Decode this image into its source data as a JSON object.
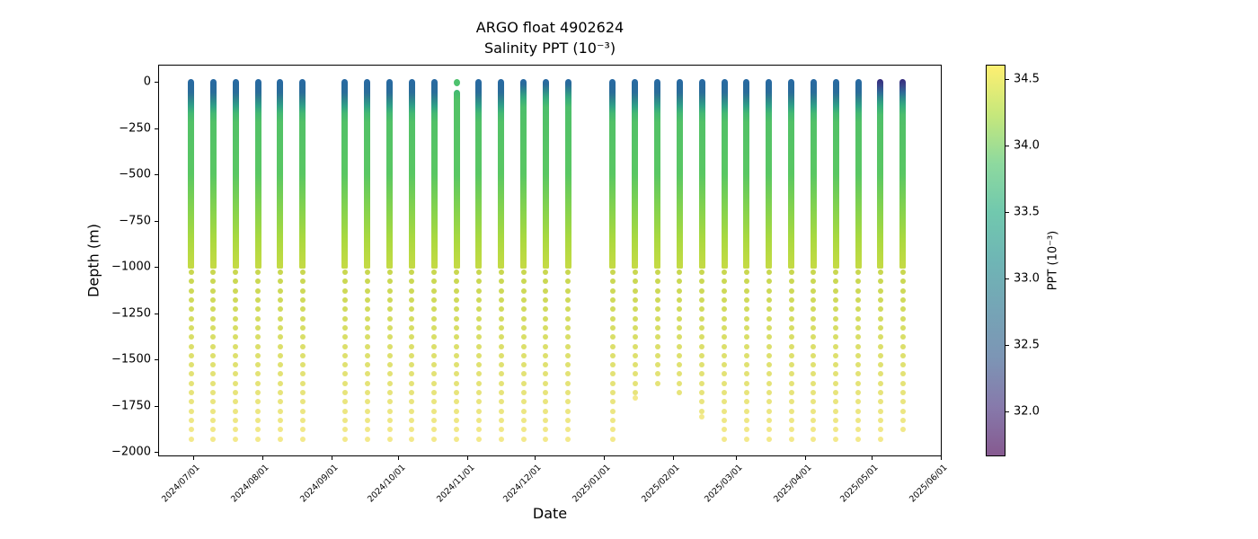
{
  "title": "ARGO float 4902624",
  "subtitle": "Salinity PPT (10⁻³)",
  "xlabel": "Date",
  "ylabel": "Depth (m)",
  "chart_data": {
    "type": "scatter",
    "title": "ARGO float 4902624",
    "subtitle": "Salinity PPT (10⁻³)",
    "xlabel": "Date",
    "ylabel": "Depth (m)",
    "x_tick_labels": [
      "2024/07/01",
      "2024/08/01",
      "2024/09/01",
      "2024/10/01",
      "2024/11/01",
      "2024/12/01",
      "2025/01/01",
      "2025/02/01",
      "2025/03/01",
      "2025/04/01",
      "2025/05/01",
      "2025/06/01"
    ],
    "y_tick_values": [
      0,
      -250,
      -500,
      -750,
      -1000,
      -1250,
      -1500,
      -1750,
      -2000
    ],
    "y_tick_labels": [
      "0",
      "−250",
      "−500",
      "−750",
      "−1000",
      "−1250",
      "−1500",
      "−1750",
      "−2000"
    ],
    "ylim": [
      -2025,
      90
    ],
    "grid": false,
    "profile_shape": {
      "dense_top_m": 0,
      "dense_bottom_m": -1010,
      "sparse_start_m": -1030,
      "sparse_step_m": 50,
      "default_end_m": -1930
    },
    "profiles": [
      {
        "date": "2024/06/30",
        "top": "blue",
        "end_m": -1930
      },
      {
        "date": "2024/07/10",
        "top": "blue",
        "end_m": -1930
      },
      {
        "date": "2024/07/20",
        "top": "blue",
        "end_m": -1930
      },
      {
        "date": "2024/07/30",
        "top": "blue",
        "end_m": -1930
      },
      {
        "date": "2024/08/09",
        "top": "blue",
        "end_m": -1930
      },
      {
        "date": "2024/08/19",
        "top": "blue",
        "end_m": -1930
      },
      {
        "date": "2024/09/07",
        "top": "blue",
        "end_m": -1930
      },
      {
        "date": "2024/09/17",
        "top": "blue",
        "end_m": -1930
      },
      {
        "date": "2024/09/27",
        "top": "blue",
        "end_m": -1930
      },
      {
        "date": "2024/10/07",
        "top": "blue",
        "end_m": -1930
      },
      {
        "date": "2024/10/17",
        "top": "blue",
        "end_m": -1930
      },
      {
        "date": "2024/10/27",
        "top": "green",
        "surface_gap": true,
        "end_m": -1930
      },
      {
        "date": "2024/11/06",
        "top": "blue",
        "end_m": -1930
      },
      {
        "date": "2024/11/16",
        "top": "blue",
        "end_m": -1930
      },
      {
        "date": "2024/11/26",
        "top": "short_blue",
        "end_m": -1930
      },
      {
        "date": "2024/12/06",
        "top": "short_blue",
        "end_m": -1930
      },
      {
        "date": "2024/12/16",
        "top": "short_blue",
        "end_m": -1930
      },
      {
        "date": "2025/01/05",
        "top": "blue",
        "end_m": -1930
      },
      {
        "date": "2025/01/15",
        "top": "blue",
        "end_m": -1680,
        "double_end": true
      },
      {
        "date": "2025/01/25",
        "top": "blue",
        "end_m": -1630
      },
      {
        "date": "2025/02/04",
        "top": "blue",
        "end_m": -1680
      },
      {
        "date": "2025/02/14",
        "top": "blue",
        "end_m": -1780,
        "double_end": true
      },
      {
        "date": "2025/02/24",
        "top": "blue",
        "end_m": -1930
      },
      {
        "date": "2025/03/06",
        "top": "blue",
        "end_m": -1930
      },
      {
        "date": "2025/03/16",
        "top": "blue",
        "end_m": -1930
      },
      {
        "date": "2025/03/26",
        "top": "blue",
        "end_m": -1930
      },
      {
        "date": "2025/04/05",
        "top": "blue",
        "end_m": -1930
      },
      {
        "date": "2025/04/15",
        "top": "blue",
        "end_m": -1930
      },
      {
        "date": "2025/04/25",
        "top": "blue",
        "end_m": -1930
      },
      {
        "date": "2025/05/05",
        "top": "indigo",
        "end_m": -1930
      },
      {
        "date": "2025/05/15",
        "top": "indigo",
        "end_m": -1880
      }
    ],
    "column_gradients": {
      "blue": [
        [
          0,
          "#2769a3"
        ],
        [
          0.07,
          "#2a6c99"
        ],
        [
          0.1,
          "#2e7f8e"
        ],
        [
          0.14,
          "#2f9e87"
        ],
        [
          0.18,
          "#43b873"
        ],
        [
          0.23,
          "#52c167"
        ],
        [
          0.5,
          "#59c763"
        ],
        [
          0.68,
          "#83d24e"
        ],
        [
          0.85,
          "#abd93f"
        ],
        [
          1,
          "#c6da45"
        ]
      ],
      "short_blue": [
        [
          0,
          "#2769a3"
        ],
        [
          0.03,
          "#2a6c99"
        ],
        [
          0.06,
          "#2e868d"
        ],
        [
          0.1,
          "#36ab7e"
        ],
        [
          0.15,
          "#4cbe6c"
        ],
        [
          0.23,
          "#52c167"
        ],
        [
          0.5,
          "#59c763"
        ],
        [
          0.68,
          "#83d24e"
        ],
        [
          0.85,
          "#abd93f"
        ],
        [
          1,
          "#c6da45"
        ]
      ],
      "indigo": [
        [
          0,
          "#352a7e"
        ],
        [
          0.035,
          "#39468a"
        ],
        [
          0.07,
          "#2f6997"
        ],
        [
          0.1,
          "#2e8a8b"
        ],
        [
          0.14,
          "#35ac7d"
        ],
        [
          0.19,
          "#4cbe6c"
        ],
        [
          0.25,
          "#52c167"
        ],
        [
          0.5,
          "#59c763"
        ],
        [
          0.68,
          "#83d24e"
        ],
        [
          0.85,
          "#abd93f"
        ],
        [
          1,
          "#c6da45"
        ]
      ],
      "green": [
        [
          0,
          "#40b873"
        ],
        [
          0.06,
          "#52c167"
        ],
        [
          0.48,
          "#59c763"
        ],
        [
          0.67,
          "#83d24e"
        ],
        [
          0.85,
          "#abd93f"
        ],
        [
          1,
          "#c6da45"
        ]
      ]
    },
    "green_cap_color": "#4ec26e",
    "sparse_dot_colors": {
      "start": "#c9d750",
      "end": "#f3e98c"
    },
    "colorbar": {
      "label": "PPT (10⁻³)",
      "tick_values": [
        34.5,
        34.0,
        33.5,
        33.0,
        32.5,
        32.0
      ],
      "tick_labels": [
        "34.5",
        "34.0",
        "33.5",
        "33.0",
        "32.5",
        "32.0"
      ],
      "vmin": 31.66,
      "vmax": 34.61,
      "colormap": "viridis",
      "opacity": 0.65,
      "stops": [
        [
          0,
          "#440154"
        ],
        [
          0.125,
          "#46327e"
        ],
        [
          0.25,
          "#365c8d"
        ],
        [
          0.375,
          "#2b748e"
        ],
        [
          0.5,
          "#218e8d"
        ],
        [
          0.625,
          "#25ab82"
        ],
        [
          0.75,
          "#51c56a"
        ],
        [
          0.875,
          "#a8db34"
        ],
        [
          1,
          "#fde725"
        ]
      ]
    }
  }
}
